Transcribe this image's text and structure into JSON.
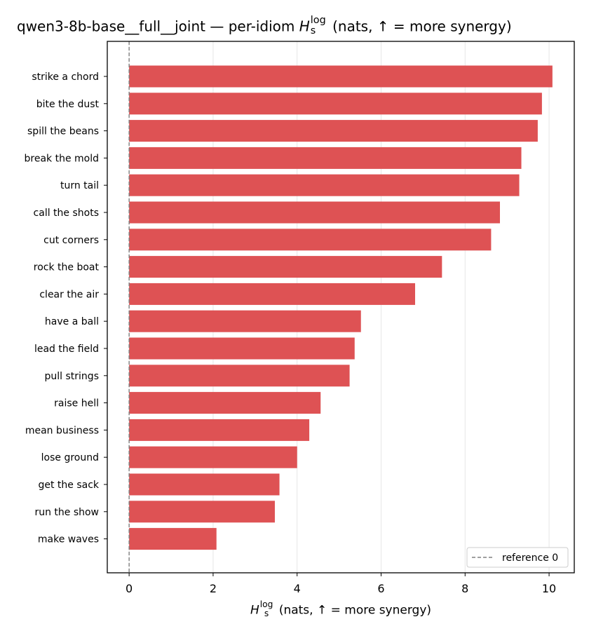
{
  "chart_data": {
    "type": "bar",
    "orientation": "horizontal",
    "title": {
      "prefix": "qwen3-8b-base__full__joint — per-idiom",
      "symbol": "H",
      "superscript": "log",
      "subscript": "s",
      "suffix": "(nats, ↑ = more synergy)"
    },
    "xlabel": {
      "symbol": "H",
      "superscript": "log",
      "subscript": "s",
      "suffix": "(nats, ↑ = more synergy)"
    },
    "ylabel": "",
    "categories": [
      "strike a chord",
      "bite the dust",
      "spill the beans",
      "break the mold",
      "turn tail",
      "call the shots",
      "cut corners",
      "rock the boat",
      "clear the air",
      "have a ball",
      "lead the field",
      "pull strings",
      "raise hell",
      "mean business",
      "lose ground",
      "get the sack",
      "run the show",
      "make waves"
    ],
    "values": [
      10.08,
      9.83,
      9.73,
      9.34,
      9.29,
      8.83,
      8.62,
      7.45,
      6.81,
      5.52,
      5.37,
      5.25,
      4.56,
      4.29,
      4.0,
      3.58,
      3.47,
      2.08
    ],
    "xlim": [
      -0.52,
      10.6
    ],
    "xticks": [
      0,
      2,
      4,
      6,
      8,
      10
    ],
    "xtick_labels": [
      "0",
      "2",
      "4",
      "6",
      "8",
      "10"
    ],
    "grid": "vertical",
    "bar_color": "#de5254",
    "reference_line": {
      "value": 0,
      "label": "reference 0",
      "color": "#808080",
      "style": "dashed"
    },
    "legend": {
      "placement": "lower-right",
      "entries": [
        "reference 0"
      ]
    }
  }
}
